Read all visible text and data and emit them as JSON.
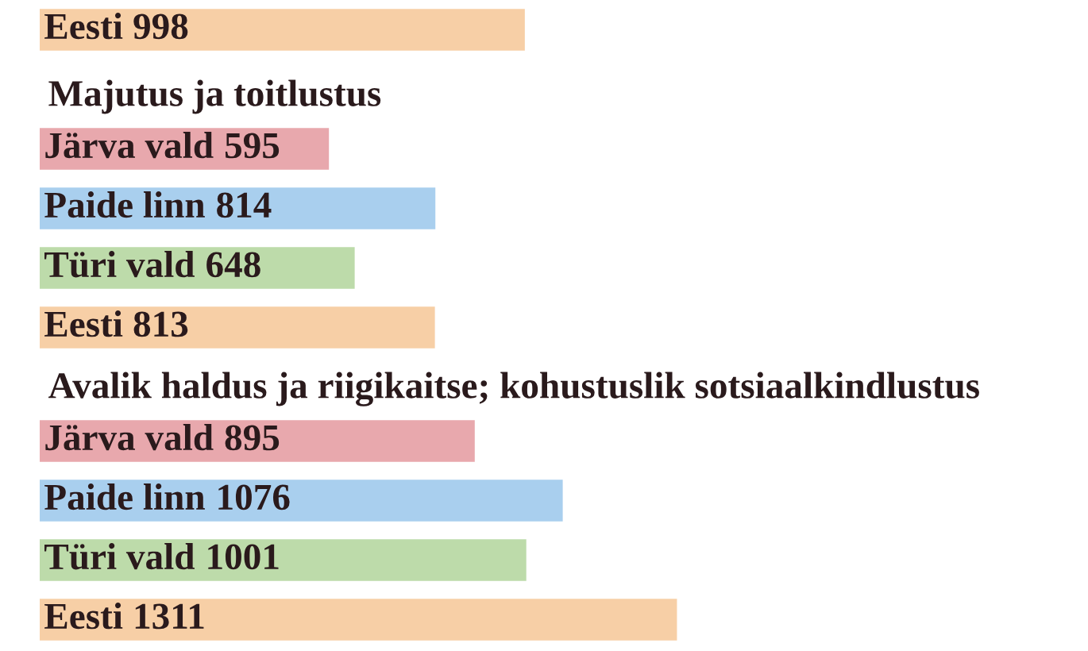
{
  "chart_data": [
    {
      "type": "bar",
      "orientation": "horizontal",
      "categories": [
        "Eesti"
      ],
      "values": [
        998
      ],
      "colors": [
        "#f7cfa6"
      ],
      "data_labels": true,
      "tick_labels": false
    },
    {
      "type": "bar",
      "orientation": "horizontal",
      "title": "Majutus ja toitlustus",
      "categories": [
        "Järva vald",
        "Paide linn",
        "Türi vald",
        "Eesti"
      ],
      "values": [
        595,
        814,
        648,
        813
      ],
      "colors": [
        "#e8a8ad",
        "#a9cfee",
        "#bddbaa",
        "#f7cfa6"
      ],
      "data_labels": true,
      "tick_labels": false
    },
    {
      "type": "bar",
      "orientation": "horizontal",
      "title": "Avalik haldus ja riigikaitse; kohustuslik sotsiaalkindlustus",
      "categories": [
        "Järva vald",
        "Paide linn",
        "Türi vald",
        "Eesti"
      ],
      "values": [
        895,
        1076,
        1001,
        1311
      ],
      "colors": [
        "#e8a8ad",
        "#a9cfee",
        "#bddbaa",
        "#f7cfa6"
      ],
      "data_labels": true,
      "tick_labels": false
    }
  ]
}
